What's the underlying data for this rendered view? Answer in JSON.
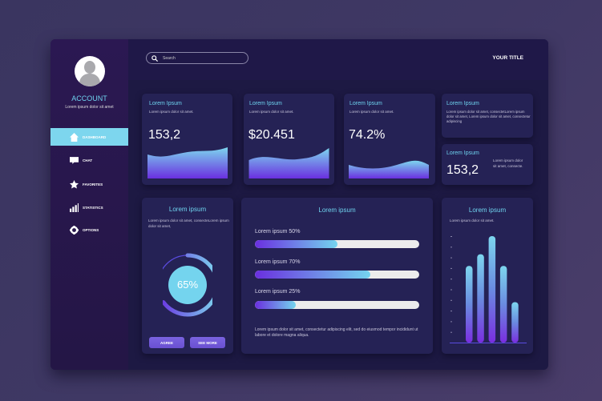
{
  "sidebar": {
    "account_title": "ACCOUNT",
    "account_subtitle": "Lorem ipsum dolor sit amet",
    "items": [
      {
        "label": "DASHBOARD",
        "icon": "home-icon",
        "active": true
      },
      {
        "label": "CHAT",
        "icon": "chat-icon"
      },
      {
        "label": "FAVORITES",
        "icon": "star-icon"
      },
      {
        "label": "STATISTICS",
        "icon": "bar-chart-icon"
      },
      {
        "label": "OPTIONS",
        "icon": "gear-icon"
      }
    ]
  },
  "header": {
    "search_placeholder": "Search",
    "title": "YOUR TITLE"
  },
  "cards": [
    {
      "title": "Lorem Ipsum",
      "text": "Lorem ipsum dolor sit amet.",
      "value": "153,2"
    },
    {
      "title": "Lorem Ipsum",
      "text": "Lorem ipsum dolor sit amet.",
      "value": "$20.451"
    },
    {
      "title": "Lorem Ipsum",
      "text": "Lorem ipsum dolor sit amet.",
      "value": "74.2%"
    },
    {
      "title": "Lorem Ipsum",
      "text": "Lorem ipsum dolor sit amet, consectetLorem ipsum dolor sit amet, Lorem ipsum dolor sit amet, consectetur adipiscing"
    },
    {
      "title": "Lorem Ipsum",
      "value": "153,2",
      "text": "Lorem ipsum dolor sit amet, consecte."
    }
  ],
  "donut_card": {
    "title": "Lorem ipsum",
    "text": "Lorem ipsum dolor sit amet, consecteLorem ipsum dolor sit amet,",
    "percent": 65,
    "percent_label": "65%",
    "agree_label": "AGREE",
    "see_more_label": "SEE MORE"
  },
  "progress_card": {
    "title": "Lorem ipsum",
    "bars": [
      {
        "label": "Lorem ipsum 50%",
        "value": 50
      },
      {
        "label": "Lorem ipsum 70%",
        "value": 70
      },
      {
        "label": "Lorem ipsum 25%",
        "value": 25
      }
    ],
    "text": "Lorem ipsum dolor sit amet, consectetur adipiscing elit, sed do eiusmod tempor incididunt ut labore et dolore magna aliqua."
  },
  "chart_card": {
    "title": "Lorem ipsum",
    "text": "Lorem ipsum dolor sit amet."
  },
  "chart_data": {
    "type": "bar",
    "values": [
      7.2,
      8.3,
      10,
      7.2,
      3.8
    ],
    "ylim": [
      0,
      10
    ],
    "grid": false,
    "colors": [
      "#7a2ee0",
      "#7dd6ee"
    ]
  },
  "colors": {
    "accent": "#6fd3ef",
    "active_nav": "#7dd6ee",
    "sidebar": "#2a1750",
    "panel": "#1d1943",
    "card": "#252255",
    "button": "#7160dc"
  }
}
